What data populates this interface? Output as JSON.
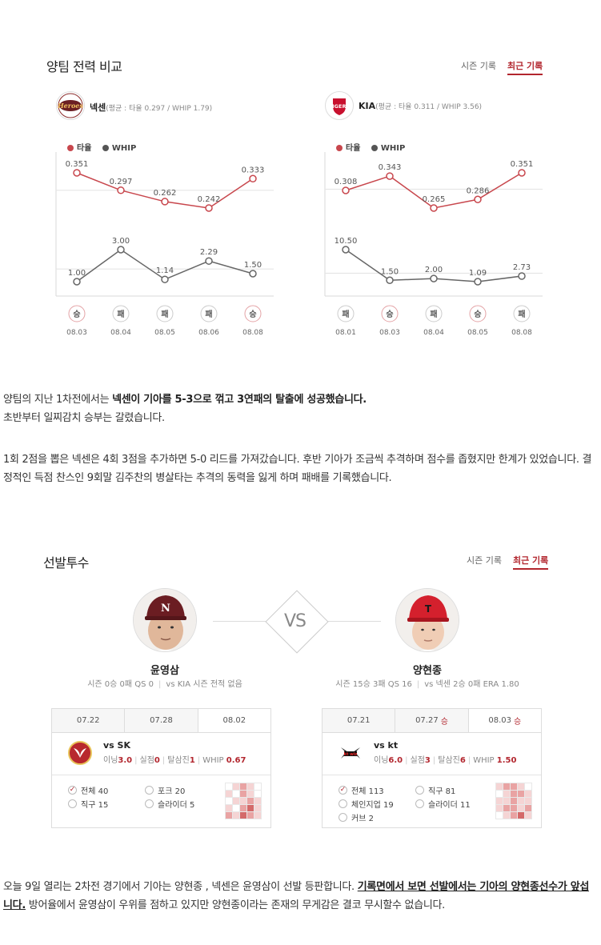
{
  "compare": {
    "title": "양팀 전력 비교",
    "tab_season": "시즌 기록",
    "tab_recent": "최근 기록",
    "legend_avg": "타율",
    "legend_whip": "WHIP",
    "left": {
      "team": "넥센",
      "avg_text": "(평균 : 타율 0.297 / WHIP 1.79)"
    },
    "right": {
      "team": "KIA",
      "avg_text": "(평균 : 타율 0.311 / WHIP 3.56)"
    }
  },
  "chart_data": [
    {
      "type": "line",
      "title": "",
      "x": [
        "08.03",
        "08.04",
        "08.05",
        "08.06",
        "08.08"
      ],
      "results": [
        "승",
        "패",
        "패",
        "패",
        "승"
      ],
      "series": [
        {
          "name": "타율",
          "values": [
            0.351,
            0.297,
            0.262,
            0.242,
            0.333
          ],
          "labels": [
            "0.351",
            "0.297",
            "0.262",
            "0.242",
            "0.333"
          ],
          "color": "#c8474d"
        },
        {
          "name": "WHIP",
          "values": [
            1.0,
            3.0,
            1.14,
            2.29,
            1.5
          ],
          "labels": [
            "1.00",
            "3.00",
            "1.14",
            "2.29",
            "1.50"
          ],
          "color": "#666666"
        }
      ],
      "avg_ref": 0.297,
      "whip_ref": 1.79,
      "grid": false
    },
    {
      "type": "line",
      "title": "",
      "x": [
        "08.01",
        "08.03",
        "08.04",
        "08.05",
        "08.08"
      ],
      "results": [
        "패",
        "승",
        "패",
        "승",
        "패"
      ],
      "series": [
        {
          "name": "타율",
          "values": [
            0.308,
            0.343,
            0.265,
            0.286,
            0.351
          ],
          "labels": [
            "0.308",
            "0.343",
            "0.265",
            "0.286",
            "0.351"
          ],
          "color": "#c8474d"
        },
        {
          "name": "WHIP",
          "values": [
            10.5,
            1.5,
            2.0,
            1.09,
            2.73
          ],
          "labels": [
            "10.50",
            "1.50",
            "2.00",
            "1.09",
            "2.73"
          ],
          "color": "#666666"
        }
      ],
      "avg_ref": 0.311,
      "whip_ref": 3.56,
      "grid": false
    }
  ],
  "article1": {
    "p1_a": "양팀의 지난 1차전에서는 ",
    "p1_b": "넥센이 기아를 5-3으로 꺾고 3연패의 탈출에 성공했습니다.",
    "p1_c": "초반부터 일찌감치 승부는 갈렸습니다.",
    "p2": "1회 2점을 뽑은 넥센은 4회 3점을 추가하면 5-0 리드를 가져갔습니다. 후반 기아가 조금씩 추격하며 점수를 좁혔지만 한계가 있었습니다. 결정적인 득점 찬스인 9회말 김주찬의 병살타는 추격의 동력을 잃게 하며 패배를 기록했습니다."
  },
  "starters": {
    "title": "선발투수",
    "tab_season": "시즌 기록",
    "tab_recent": "최근 기록",
    "vs": "VS",
    "left": {
      "name": "윤영삼",
      "stat_a": "시즌 0승 0패  QS 0",
      "stat_b": "vs KIA 시즌 전적 없음",
      "tabs": [
        {
          "date": "07.22",
          "res": ""
        },
        {
          "date": "07.28",
          "res": ""
        },
        {
          "date": "08.02",
          "res": ""
        }
      ],
      "opp": "vs SK",
      "s1_l": "이닝",
      "s1_v": "3.0",
      "s2_l": "실점",
      "s2_v": "0",
      "s3_l": "탈삼진",
      "s3_v": "1",
      "s4_l": "WHIP",
      "s4_v": "0.67",
      "pitches": [
        {
          "label": "전체 40",
          "on": true
        },
        {
          "label": "포크 20",
          "on": false
        },
        {
          "label": "직구 15",
          "on": false
        },
        {
          "label": "슬라이더 5",
          "on": false
        }
      ]
    },
    "right": {
      "name": "양현종",
      "stat_a": "시즌 15승 3패  QS 16",
      "stat_b": "vs 넥센 2승 0패  ERA 1.80",
      "tabs": [
        {
          "date": "07.21",
          "res": ""
        },
        {
          "date": "07.27",
          "res": "승"
        },
        {
          "date": "08.03",
          "res": "승"
        }
      ],
      "opp": "vs kt",
      "s1_l": "이닝",
      "s1_v": "6.0",
      "s2_l": "실점",
      "s2_v": "3",
      "s3_l": "탈삼진",
      "s3_v": "6",
      "s4_l": "WHIP",
      "s4_v": "1.50",
      "pitches": [
        {
          "label": "전체 113",
          "on": true
        },
        {
          "label": "직구 81",
          "on": false
        },
        {
          "label": "체인지업 19",
          "on": false
        },
        {
          "label": "슬라이더 11",
          "on": false
        },
        {
          "label": "커브 2",
          "on": false
        }
      ]
    }
  },
  "article2": {
    "a": "오늘 9일 열리는 2차전 경기에서 기아는 양현종 , 넥센은 윤영삼이 선발 등판합니다. ",
    "b": "기록면에서 보면 선발에서는 기아의 양현종선수가 앞섭니다.",
    "c": " 방어율에서 윤영삼이 우위를 점하고 있지만 양현종이라는 존재의 무게감은 결코 무시할수 없습니다."
  },
  "colors": {
    "accent": "#b2262e",
    "avg_line": "#c8474d",
    "whip_line": "#666666"
  }
}
